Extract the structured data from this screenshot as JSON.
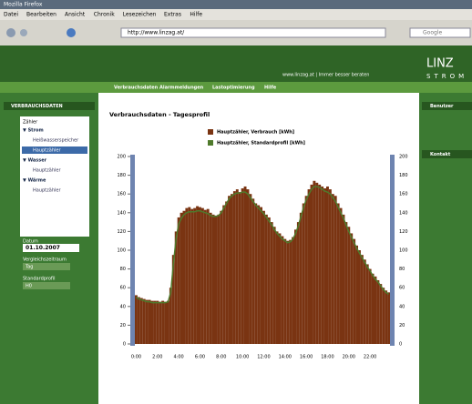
{
  "browser": {
    "title": "Mozilla Firefox",
    "menu": [
      "Datei",
      "Bearbeiten",
      "Ansicht",
      "Chronik",
      "Lesezeichen",
      "Extras",
      "Hilfe"
    ],
    "url": "http://www.linzag.at/",
    "search": "Google"
  },
  "header": {
    "slogan": "www.linzag.at | Immer besser beraten",
    "logo": "LINZ",
    "logo_sub": "STROM"
  },
  "nav": [
    "Verbrauchsdaten",
    "Alarmmeldungen",
    "Lastoptimierung",
    "Hilfe"
  ],
  "sidebar": {
    "title": "VERBRAUCHSDATEN",
    "counter_label": "Zähler",
    "tree": [
      "▼ Strom",
      "Heißwasserspeicher",
      "Hauptzähler",
      "▼ Wasser",
      "Hauptzähler",
      "▼ Wärme",
      "Hauptzähler"
    ],
    "date_label": "Datum",
    "date": "01.10.2007",
    "period_label": "Vergleichszeitraum",
    "period": "Tag",
    "profile_label": "Standardprofil",
    "profile": "H0"
  },
  "right": {
    "user": "Benutzer",
    "contact": "Kontakt"
  },
  "chart_data": {
    "type": "bar",
    "title": "Verbrauchsdaten - Tagesprofil",
    "categories": [
      "0:00",
      null,
      null,
      null,
      null,
      null,
      null,
      null,
      "2:00",
      null,
      null,
      null,
      null,
      null,
      null,
      null,
      "4:00",
      null,
      null,
      null,
      null,
      null,
      null,
      null,
      "6:00",
      null,
      null,
      null,
      null,
      null,
      null,
      null,
      "8:00",
      null,
      null,
      null,
      null,
      null,
      null,
      null,
      "10:00",
      null,
      null,
      null,
      null,
      null,
      null,
      null,
      "12:00",
      null,
      null,
      null,
      null,
      null,
      null,
      null,
      "14:00",
      null,
      null,
      null,
      null,
      null,
      null,
      null,
      "16:00",
      null,
      null,
      null,
      null,
      null,
      null,
      null,
      "18:00",
      null,
      null,
      null,
      null,
      null,
      null,
      null,
      "20:00",
      null,
      null,
      null,
      null,
      null,
      null,
      null,
      "22:00",
      null,
      null,
      null,
      null,
      null,
      null,
      null
    ],
    "series": [
      {
        "name": "Hauptzähler, Verbrauch [kWh]",
        "color": "#7a3412",
        "values": [
          52,
          50,
          49,
          48,
          47,
          47,
          46,
          46,
          46,
          45,
          46,
          45,
          46,
          60,
          95,
          120,
          135,
          140,
          142,
          145,
          146,
          144,
          145,
          147,
          146,
          145,
          143,
          144,
          140,
          138,
          137,
          138,
          142,
          148,
          152,
          158,
          160,
          163,
          165,
          162,
          166,
          168,
          165,
          160,
          155,
          150,
          148,
          146,
          142,
          138,
          135,
          130,
          125,
          120,
          118,
          115,
          112,
          110,
          111,
          114,
          122,
          130,
          140,
          150,
          158,
          165,
          170,
          174,
          172,
          170,
          168,
          166,
          168,
          165,
          160,
          158,
          150,
          145,
          138,
          130,
          125,
          118,
          112,
          105,
          100,
          95,
          90,
          85,
          80,
          75,
          72,
          68,
          64,
          60,
          57,
          55
        ]
      },
      {
        "name": "Hauptzähler, Standardprofil [kWh]",
        "color": "#4f7a2c",
        "values": [
          50,
          48,
          47,
          46,
          45,
          45,
          44,
          44,
          44,
          44,
          44,
          44,
          45,
          55,
          85,
          112,
          128,
          134,
          138,
          140,
          141,
          141,
          141,
          142,
          142,
          141,
          140,
          139,
          137,
          136,
          136,
          137,
          140,
          145,
          150,
          155,
          158,
          160,
          161,
          161,
          162,
          162,
          160,
          156,
          152,
          148,
          145,
          142,
          139,
          135,
          131,
          127,
          122,
          118,
          115,
          112,
          110,
          108,
          109,
          112,
          118,
          126,
          136,
          146,
          154,
          160,
          165,
          168,
          168,
          167,
          165,
          163,
          162,
          160,
          156,
          152,
          146,
          140,
          134,
          127,
          120,
          114,
          108,
          102,
          97,
          92,
          87,
          82,
          78,
          73,
          69,
          66,
          62,
          58,
          55,
          53
        ]
      }
    ],
    "ylim": [
      0,
      200
    ],
    "yticks": [
      0,
      20,
      40,
      60,
      80,
      100,
      120,
      140,
      160,
      180,
      200
    ],
    "grid": false
  }
}
